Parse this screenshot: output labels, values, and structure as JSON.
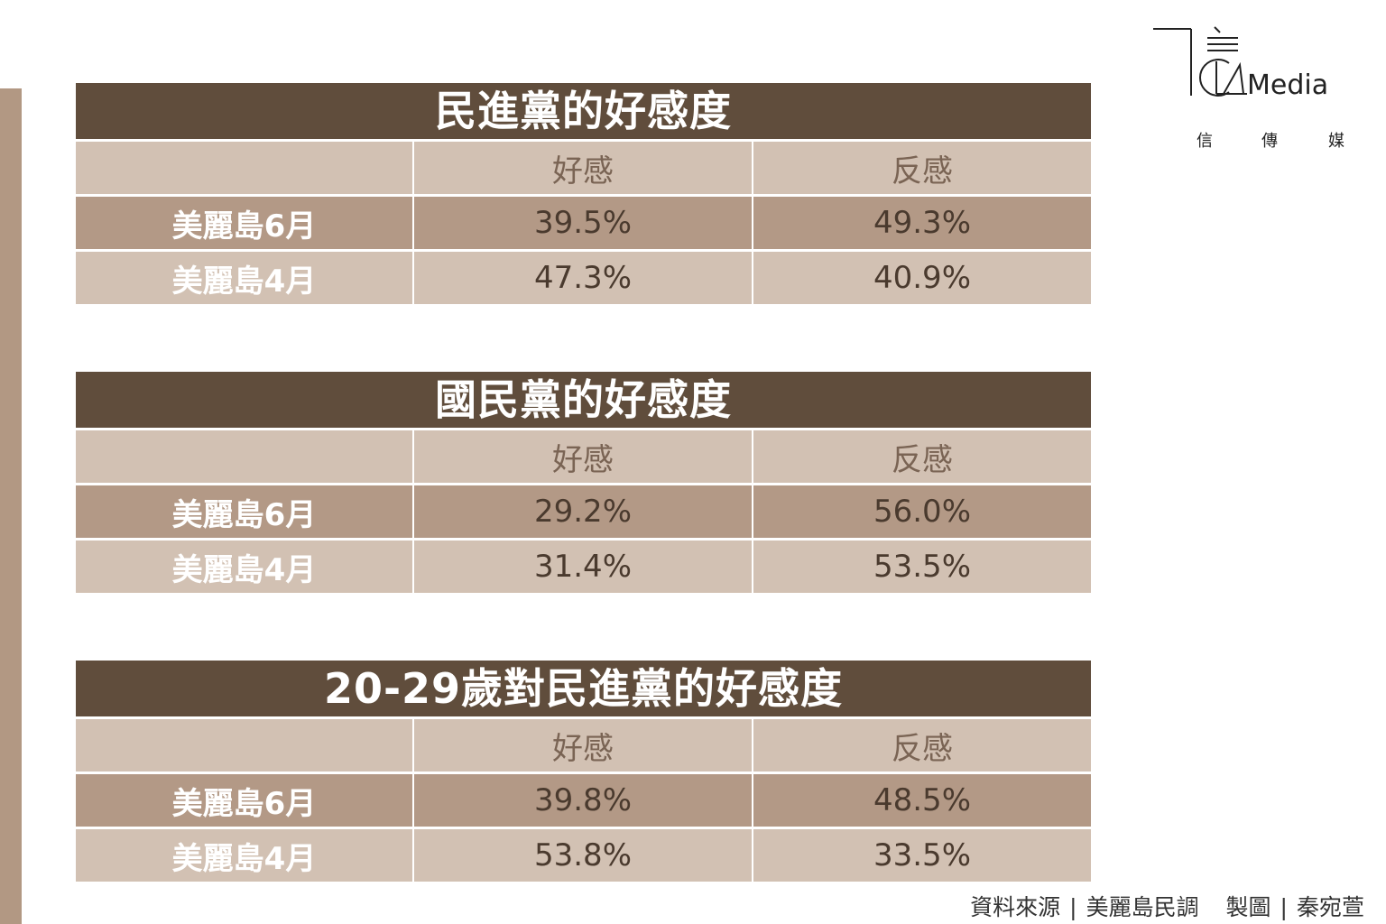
{
  "logo": {
    "text": "Media",
    "sub": [
      "信",
      "傳",
      "媒"
    ]
  },
  "chart_data": [
    {
      "type": "table",
      "title": "民進黨的好感度",
      "columns": [
        "",
        "好感",
        "反感"
      ],
      "rows": [
        {
          "label": "美麗島6月",
          "values": [
            "39.5%",
            "49.3%"
          ]
        },
        {
          "label": "美麗島4月",
          "values": [
            "47.3%",
            "40.9%"
          ]
        }
      ]
    },
    {
      "type": "table",
      "title": "國民黨的好感度",
      "columns": [
        "",
        "好感",
        "反感"
      ],
      "rows": [
        {
          "label": "美麗島6月",
          "values": [
            "29.2%",
            "56.0%"
          ]
        },
        {
          "label": "美麗島4月",
          "values": [
            "31.4%",
            "53.5%"
          ]
        }
      ]
    },
    {
      "type": "table",
      "title": "20-29歲對民進黨的好感度",
      "columns": [
        "",
        "好感",
        "反感"
      ],
      "rows": [
        {
          "label": "美麗島6月",
          "values": [
            "39.8%",
            "48.5%"
          ]
        },
        {
          "label": "美麗島4月",
          "values": [
            "53.8%",
            "33.5%"
          ]
        }
      ]
    }
  ],
  "footer": {
    "source_label": "資料來源",
    "source_value": "美麗島民調",
    "credit_label": "製圖",
    "credit_value": "秦宛萱",
    "separator": "|"
  },
  "colors": {
    "title_bg": "#604d3c",
    "dark_row": "#b39986",
    "light_row": "#d2c1b3",
    "left_bar": "#b29883"
  }
}
